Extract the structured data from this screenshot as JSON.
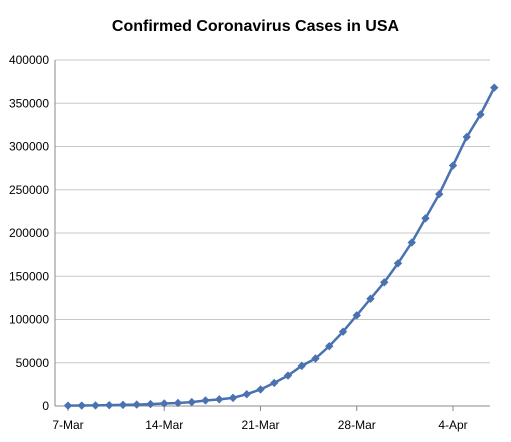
{
  "chart_data": {
    "type": "line",
    "title": "Confirmed Coronavirus Cases in USA",
    "xlabel": "",
    "ylabel": "",
    "ylim": [
      0,
      400000
    ],
    "y_ticks": [
      0,
      50000,
      100000,
      150000,
      200000,
      250000,
      300000,
      350000,
      400000
    ],
    "y_tick_labels": [
      "0",
      "50000",
      "100000",
      "150000",
      "200000",
      "250000",
      "300000",
      "350000",
      "400000"
    ],
    "x_ticks": [
      "7-Mar",
      "14-Mar",
      "21-Mar",
      "28-Mar",
      "4-Apr"
    ],
    "grid": "horizontal",
    "legend": "none",
    "series_color": "#4a72b0",
    "series": [
      {
        "x": [
          "7-Mar",
          "8-Mar",
          "9-Mar",
          "10-Mar",
          "11-Mar",
          "12-Mar",
          "13-Mar",
          "14-Mar",
          "15-Mar",
          "16-Mar",
          "17-Mar",
          "18-Mar",
          "19-Mar",
          "20-Mar",
          "21-Mar",
          "22-Mar",
          "23-Mar",
          "24-Mar",
          "25-Mar",
          "26-Mar",
          "27-Mar",
          "28-Mar",
          "29-Mar",
          "30-Mar",
          "31-Mar",
          "1-Apr",
          "2-Apr",
          "3-Apr",
          "4-Apr",
          "5-Apr",
          "6-Apr",
          "7-Apr"
        ],
        "values": [
          400,
          550,
          700,
          950,
          1300,
          1650,
          2200,
          2950,
          3500,
          4500,
          6400,
          7700,
          9400,
          13600,
          19100,
          26700,
          35200,
          46400,
          54900,
          69200,
          85900,
          104800,
          124000,
          143000,
          165000,
          189000,
          217000,
          245000,
          278000,
          311000,
          337000,
          368000
        ]
      }
    ]
  }
}
